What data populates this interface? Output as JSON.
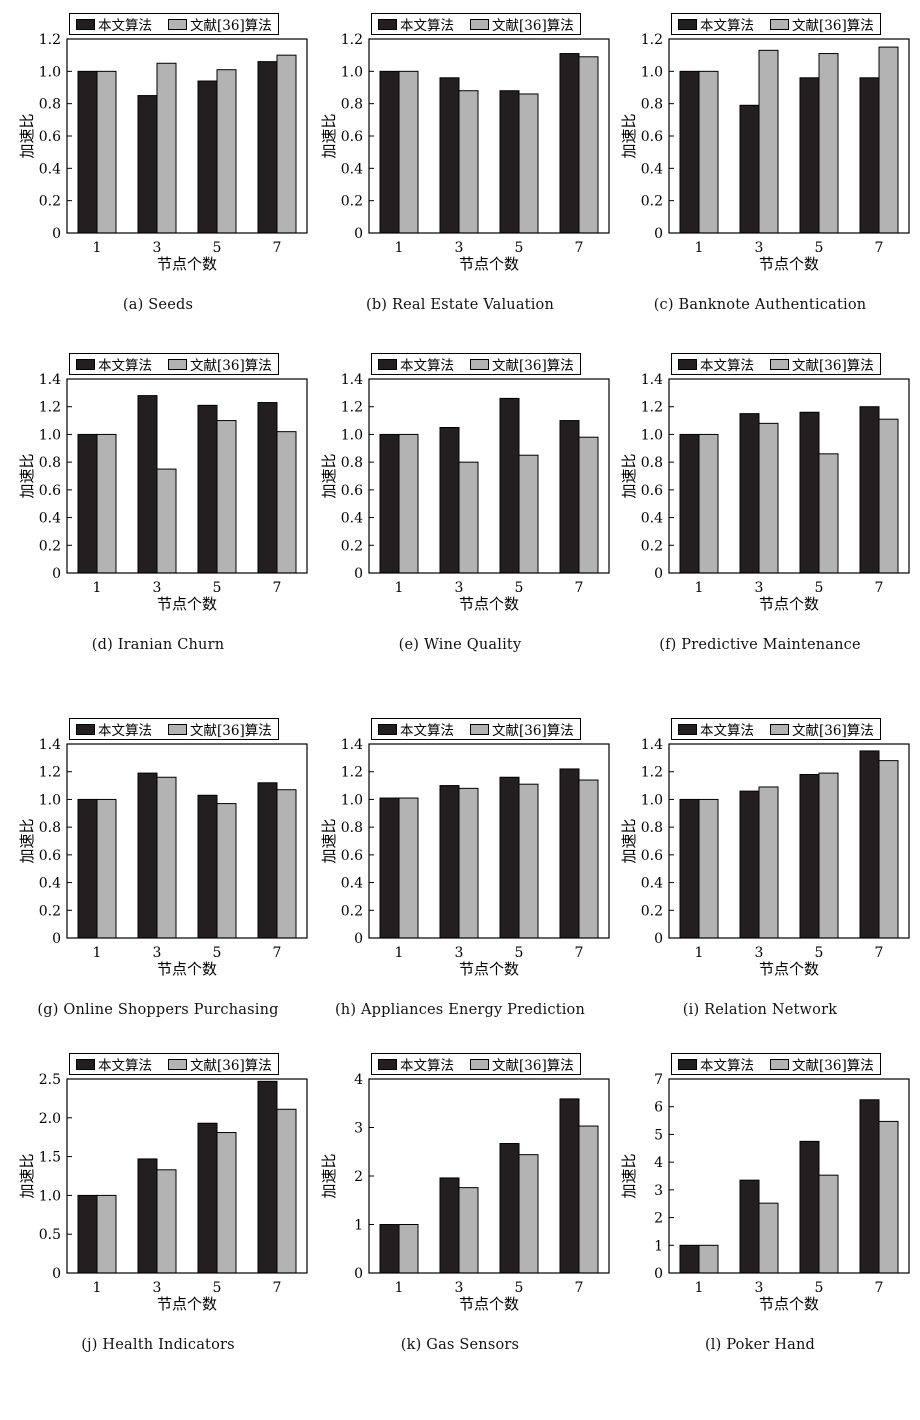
{
  "legend": {
    "ours": "本文算法",
    "ref": "文献[36]算法"
  },
  "xlabel": "节点个数",
  "ylabel": "加速比",
  "colors": {
    "ours": "#231f20",
    "ref": "#b3b3b3"
  },
  "chart_data": [
    {
      "type": "bar",
      "caption": "(a) Seeds",
      "categories": [
        "1",
        "3",
        "5",
        "7"
      ],
      "ylim": [
        0,
        1.2
      ],
      "yticks": [
        "0",
        "0.2",
        "0.4",
        "0.6",
        "0.8",
        "1.0",
        "1.2"
      ],
      "series": [
        {
          "name": "本文算法",
          "values": [
            1.0,
            0.85,
            0.94,
            1.06
          ]
        },
        {
          "name": "文献[36]算法",
          "values": [
            1.0,
            1.05,
            1.01,
            1.1
          ]
        }
      ]
    },
    {
      "type": "bar",
      "caption": "(b) Real Estate Valuation",
      "categories": [
        "1",
        "3",
        "5",
        "7"
      ],
      "ylim": [
        0,
        1.2
      ],
      "yticks": [
        "0",
        "0.2",
        "0.4",
        "0.6",
        "0.8",
        "1.0",
        "1.2"
      ],
      "series": [
        {
          "name": "本文算法",
          "values": [
            1.0,
            0.96,
            0.88,
            1.11
          ]
        },
        {
          "name": "文献[36]算法",
          "values": [
            1.0,
            0.88,
            0.86,
            1.09
          ]
        }
      ]
    },
    {
      "type": "bar",
      "caption": "(c) Banknote Authentication",
      "categories": [
        "1",
        "3",
        "5",
        "7"
      ],
      "ylim": [
        0,
        1.2
      ],
      "yticks": [
        "0",
        "0.2",
        "0.4",
        "0.6",
        "0.8",
        "1.0",
        "1.2"
      ],
      "series": [
        {
          "name": "本文算法",
          "values": [
            1.0,
            0.79,
            0.96,
            0.96
          ]
        },
        {
          "name": "文献[36]算法",
          "values": [
            1.0,
            1.13,
            1.11,
            1.15
          ]
        }
      ]
    },
    {
      "type": "bar",
      "caption": "(d) Iranian Churn",
      "categories": [
        "1",
        "3",
        "5",
        "7"
      ],
      "ylim": [
        0,
        1.4
      ],
      "yticks": [
        "0",
        "0.2",
        "0.4",
        "0.6",
        "0.8",
        "1.0",
        "1.2",
        "1.4"
      ],
      "series": [
        {
          "name": "本文算法",
          "values": [
            1.0,
            1.28,
            1.21,
            1.23
          ]
        },
        {
          "name": "文献[36]算法",
          "values": [
            1.0,
            0.75,
            1.1,
            1.02
          ]
        }
      ]
    },
    {
      "type": "bar",
      "caption": "(e) Wine Quality",
      "categories": [
        "1",
        "3",
        "5",
        "7"
      ],
      "ylim": [
        0,
        1.4
      ],
      "yticks": [
        "0",
        "0.2",
        "0.4",
        "0.6",
        "0.8",
        "1.0",
        "1.2",
        "1.4"
      ],
      "series": [
        {
          "name": "本文算法",
          "values": [
            1.0,
            1.05,
            1.26,
            1.1
          ]
        },
        {
          "name": "文献[36]算法",
          "values": [
            1.0,
            0.8,
            0.85,
            0.98
          ]
        }
      ]
    },
    {
      "type": "bar",
      "caption": "(f) Predictive Maintenance",
      "categories": [
        "1",
        "3",
        "5",
        "7"
      ],
      "ylim": [
        0,
        1.4
      ],
      "yticks": [
        "0",
        "0.2",
        "0.4",
        "0.6",
        "0.8",
        "1.0",
        "1.2",
        "1.4"
      ],
      "series": [
        {
          "name": "本文算法",
          "values": [
            1.0,
            1.15,
            1.16,
            1.2
          ]
        },
        {
          "name": "文献[36]算法",
          "values": [
            1.0,
            1.08,
            0.86,
            1.11
          ]
        }
      ]
    },
    {
      "type": "bar",
      "caption": "(g) Online Shoppers Purchasing",
      "categories": [
        "1",
        "3",
        "5",
        "7"
      ],
      "ylim": [
        0,
        1.4
      ],
      "yticks": [
        "0",
        "0.2",
        "0.4",
        "0.6",
        "0.8",
        "1.0",
        "1.2",
        "1.4"
      ],
      "series": [
        {
          "name": "本文算法",
          "values": [
            1.0,
            1.19,
            1.03,
            1.12
          ]
        },
        {
          "name": "文献[36]算法",
          "values": [
            1.0,
            1.16,
            0.97,
            1.07
          ]
        }
      ]
    },
    {
      "type": "bar",
      "caption": "(h) Appliances Energy Prediction",
      "categories": [
        "1",
        "3",
        "5",
        "7"
      ],
      "ylim": [
        0,
        1.4
      ],
      "yticks": [
        "0",
        "0.2",
        "0.4",
        "0.6",
        "0.8",
        "1.0",
        "1.2",
        "1.4"
      ],
      "series": [
        {
          "name": "本文算法",
          "values": [
            1.01,
            1.1,
            1.16,
            1.22
          ]
        },
        {
          "name": "文献[36]算法",
          "values": [
            1.01,
            1.08,
            1.11,
            1.14
          ]
        }
      ]
    },
    {
      "type": "bar",
      "caption": "(i) Relation Network",
      "categories": [
        "1",
        "3",
        "5",
        "7"
      ],
      "ylim": [
        0,
        1.4
      ],
      "yticks": [
        "0",
        "0.2",
        "0.4",
        "0.6",
        "0.8",
        "1.0",
        "1.2",
        "1.4"
      ],
      "series": [
        {
          "name": "本文算法",
          "values": [
            1.0,
            1.06,
            1.18,
            1.35
          ]
        },
        {
          "name": "文献[36]算法",
          "values": [
            1.0,
            1.09,
            1.19,
            1.28
          ]
        }
      ]
    },
    {
      "type": "bar",
      "caption": "(j) Health Indicators",
      "categories": [
        "1",
        "3",
        "5",
        "7"
      ],
      "ylim": [
        0,
        2.5
      ],
      "yticks": [
        "0",
        "0.5",
        "1.0",
        "1.5",
        "2.0",
        "2.5"
      ],
      "series": [
        {
          "name": "本文算法",
          "values": [
            1.0,
            1.47,
            1.93,
            2.47
          ]
        },
        {
          "name": "文献[36]算法",
          "values": [
            1.0,
            1.33,
            1.81,
            2.11
          ]
        }
      ]
    },
    {
      "type": "bar",
      "caption": "(k) Gas Sensors",
      "categories": [
        "1",
        "3",
        "5",
        "7"
      ],
      "ylim": [
        0,
        4
      ],
      "yticks": [
        "0",
        "1",
        "2",
        "3",
        "4"
      ],
      "series": [
        {
          "name": "本文算法",
          "values": [
            1.0,
            1.96,
            2.67,
            3.59
          ]
        },
        {
          "name": "文献[36]算法",
          "values": [
            1.0,
            1.76,
            2.44,
            3.03
          ]
        }
      ]
    },
    {
      "type": "bar",
      "caption": "(l) Poker Hand",
      "categories": [
        "1",
        "3",
        "5",
        "7"
      ],
      "ylim": [
        0,
        7
      ],
      "yticks": [
        "0",
        "1",
        "2",
        "3",
        "4",
        "5",
        "6",
        "7"
      ],
      "series": [
        {
          "name": "本文算法",
          "values": [
            1.0,
            3.35,
            4.75,
            6.25
          ]
        },
        {
          "name": "文献[36]算法",
          "values": [
            1.0,
            2.52,
            3.53,
            5.47
          ]
        }
      ]
    }
  ]
}
